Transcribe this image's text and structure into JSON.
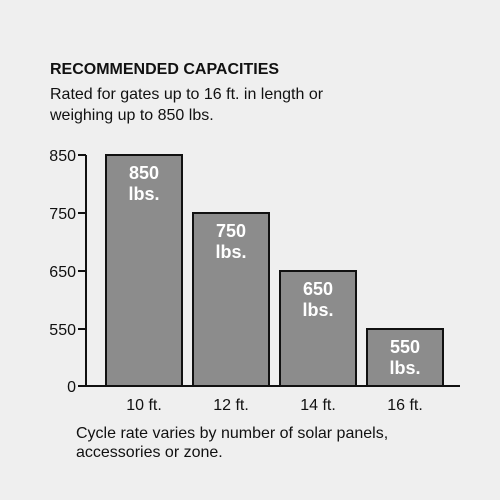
{
  "colors": {
    "background": "#efefef",
    "bar_fill": "#8c8c8c",
    "bar_stroke": "#111111",
    "bar_label": "#ffffff",
    "text": "#111111"
  },
  "header": {
    "title": "RECOMMENDED CAPACITIES",
    "subtitle": "Rated for gates up to 16 ft. in length or weighing up to 850 lbs."
  },
  "footnote": "Cycle rate varies by number of solar panels, accessories or zone.",
  "chart_data": {
    "type": "bar",
    "title": "",
    "xlabel": "",
    "ylabel": "",
    "categories": [
      "10 ft.",
      "12 ft.",
      "14 ft.",
      "16 ft."
    ],
    "values": [
      850,
      750,
      650,
      550
    ],
    "bar_labels": [
      [
        "850",
        "lbs."
      ],
      [
        "750",
        "lbs."
      ],
      [
        "650",
        "lbs."
      ],
      [
        "550",
        "lbs."
      ]
    ],
    "y_ticks": [
      {
        "label": "850",
        "value": 850
      },
      {
        "label": "750",
        "value": 750
      },
      {
        "label": "650",
        "value": 650
      },
      {
        "label": "550",
        "value": 550
      },
      {
        "label": "0",
        "value": 0
      }
    ],
    "axis_break": true,
    "grid": false,
    "legend": "none"
  }
}
